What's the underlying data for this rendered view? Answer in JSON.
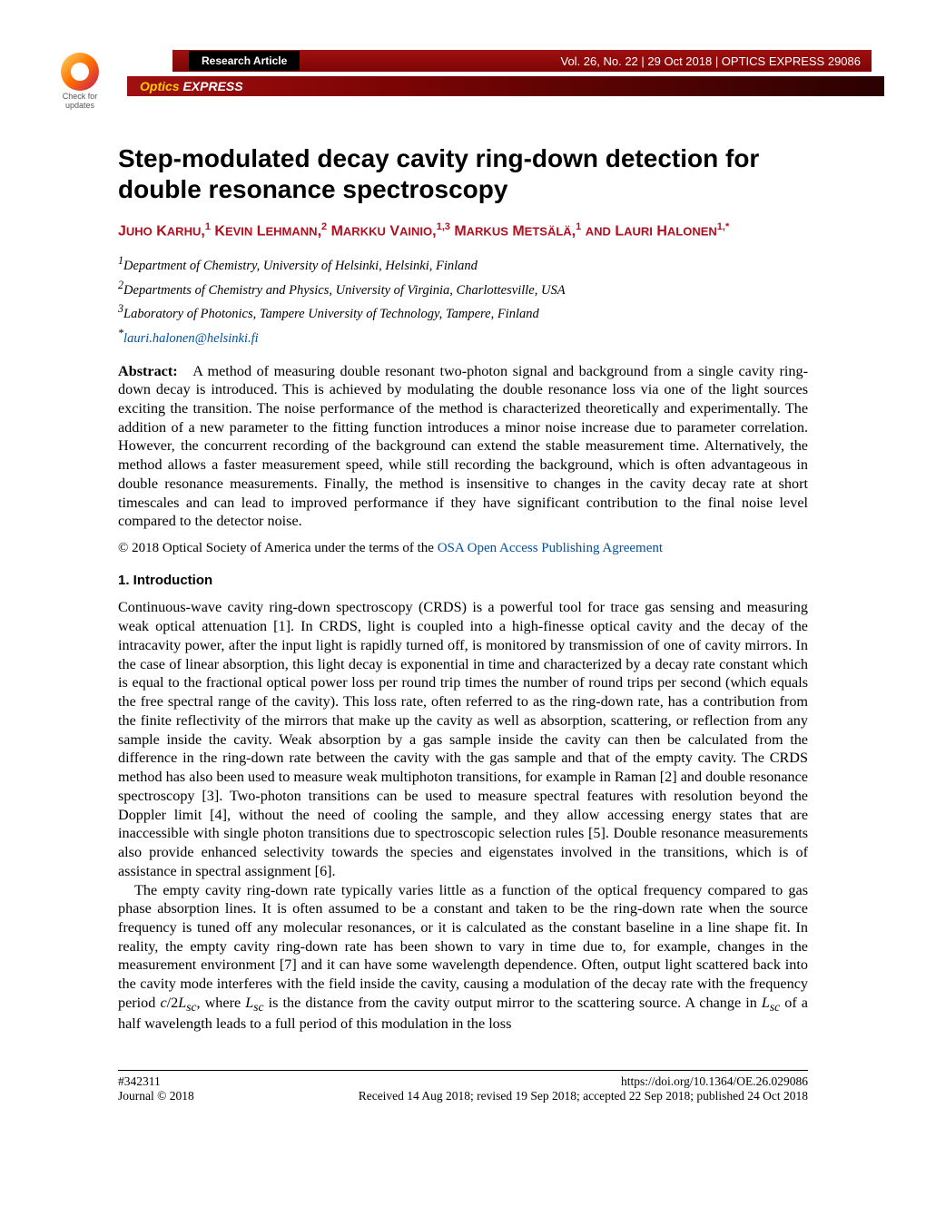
{
  "header": {
    "check_label": "Check for updates",
    "article_type": "Research Article",
    "volume_info": "Vol. 26, No. 22 | 29 Oct 2018 | OPTICS EXPRESS 29086",
    "journal_prefix": "Optics",
    "journal_suffix": " EXPRESS"
  },
  "paper": {
    "title": "Step-modulated decay cavity ring-down detection for double resonance spectroscopy",
    "authors_html": "J<span style='font-size:13px'>UHO</span> K<span style='font-size:13px'>ARHU</span>,<sup>1</sup> K<span style='font-size:13px'>EVIN</span> L<span style='font-size:13px'>EHMANN</span>,<sup>2</sup> M<span style='font-size:13px'>ARKKU</span> V<span style='font-size:13px'>AINIO</span>,<sup>1,3</sup> M<span style='font-size:13px'>ARKUS</span> M<span style='font-size:13px'>ETSÄLÄ</span>,<sup>1</sup> <span style='font-size:13px'>AND</span> L<span style='font-size:13px'>AURI</span> H<span style='font-size:13px'>ALONEN</span><sup>1,*</sup>",
    "affil1": "Department of Chemistry, University of Helsinki, Helsinki, Finland",
    "affil2": "Departments of Chemistry and Physics, University of Virginia, Charlottesville, USA",
    "affil3": "Laboratory of Photonics, Tampere University of Technology, Tampere, Finland",
    "email": "lauri.halonen@helsinki.fi",
    "abstract_label": "Abstract:",
    "abstract": "A method of measuring double resonant two-photon signal and background from a single cavity ring-down decay is introduced. This is achieved by modulating the double resonance loss via one of the light sources exciting the transition. The noise performance of the method is characterized theoretically and experimentally. The addition of a new parameter to the fitting function introduces a minor noise increase due to parameter correlation. However, the concurrent recording of the background can extend the stable measurement time. Alternatively, the method allows a faster measurement speed, while still recording the background, which is often advantageous in double resonance measurements. Finally, the method is insensitive to changes in the cavity decay rate at short timescales and can lead to improved performance if they have significant contribution to the final noise level compared to the detector noise.",
    "copyright_prefix": "© 2018 Optical Society of America under the terms of the ",
    "copyright_link": "OSA Open Access Publishing Agreement",
    "section1_heading": "1.   Introduction",
    "para1": "Continuous-wave cavity ring-down spectroscopy (CRDS) is a powerful tool for trace gas sensing and measuring weak optical attenuation [1]. In CRDS, light is coupled into a high-finesse optical cavity and the decay of the intracavity power, after the input light is rapidly turned off, is monitored by transmission of one of cavity mirrors. In the case of linear absorption, this light decay is exponential in time and characterized by a decay rate constant which is equal to the fractional optical power loss per round trip times the number of round trips per second (which equals the free spectral range of the cavity). This loss rate, often referred to as the ring-down rate, has a contribution from the finite reflectivity of the mirrors that make up the cavity as well as absorption, scattering, or reflection from any sample inside the cavity. Weak absorption by a gas sample inside the cavity can then be calculated from the difference in the ring-down rate between the cavity with the gas sample and that of the empty cavity. The CRDS method has also been used to measure weak multiphoton transitions, for example in Raman [2] and double resonance spectroscopy [3]. Two-photon transitions can be used to measure spectral features with resolution beyond the Doppler limit [4], without the need of cooling the sample, and they allow accessing energy states that are inaccessible with single photon transitions due to spectroscopic selection rules [5]. Double resonance measurements also provide enhanced selectivity towards the species and eigenstates involved in the transitions, which is of assistance in spectral assignment [6].",
    "para2_pre": "The empty cavity ring-down rate typically varies little as a function of the optical frequency compared to gas phase absorption lines. It is often assumed to be a constant and taken to be the ring-down rate when the source frequency is tuned off any molecular resonances, or it is calculated as the constant baseline in a line shape fit. In reality, the empty cavity ring-down rate has been shown to vary in time due to, for example, changes in the measurement environment [7] and it can have some wavelength dependence. Often, output light scattered back into the cavity mode interferes with the field inside the cavity, causing a modulation of the decay rate with the frequency period ",
    "para2_mid1": "c",
    "para2_mid2": "/2",
    "para2_mid3": "L",
    "para2_mid3sub": "sc",
    "para2_mid4": ", where ",
    "para2_mid5": "L",
    "para2_mid5sub": "sc",
    "para2_mid6": " is the distance from the cavity output mirror to the scattering source. A change in ",
    "para2_mid7": "L",
    "para2_mid7sub": "sc",
    "para2_post": " of a half wavelength leads to a full period of this modulation in the loss"
  },
  "footer": {
    "article_id": "#342311",
    "journal_copyright": "Journal © 2018",
    "doi": "https://doi.org/10.1364/OE.26.029086",
    "dates": "Received 14 Aug 2018; revised 19 Sep 2018; accepted 22 Sep 2018; published 24 Oct 2018"
  }
}
